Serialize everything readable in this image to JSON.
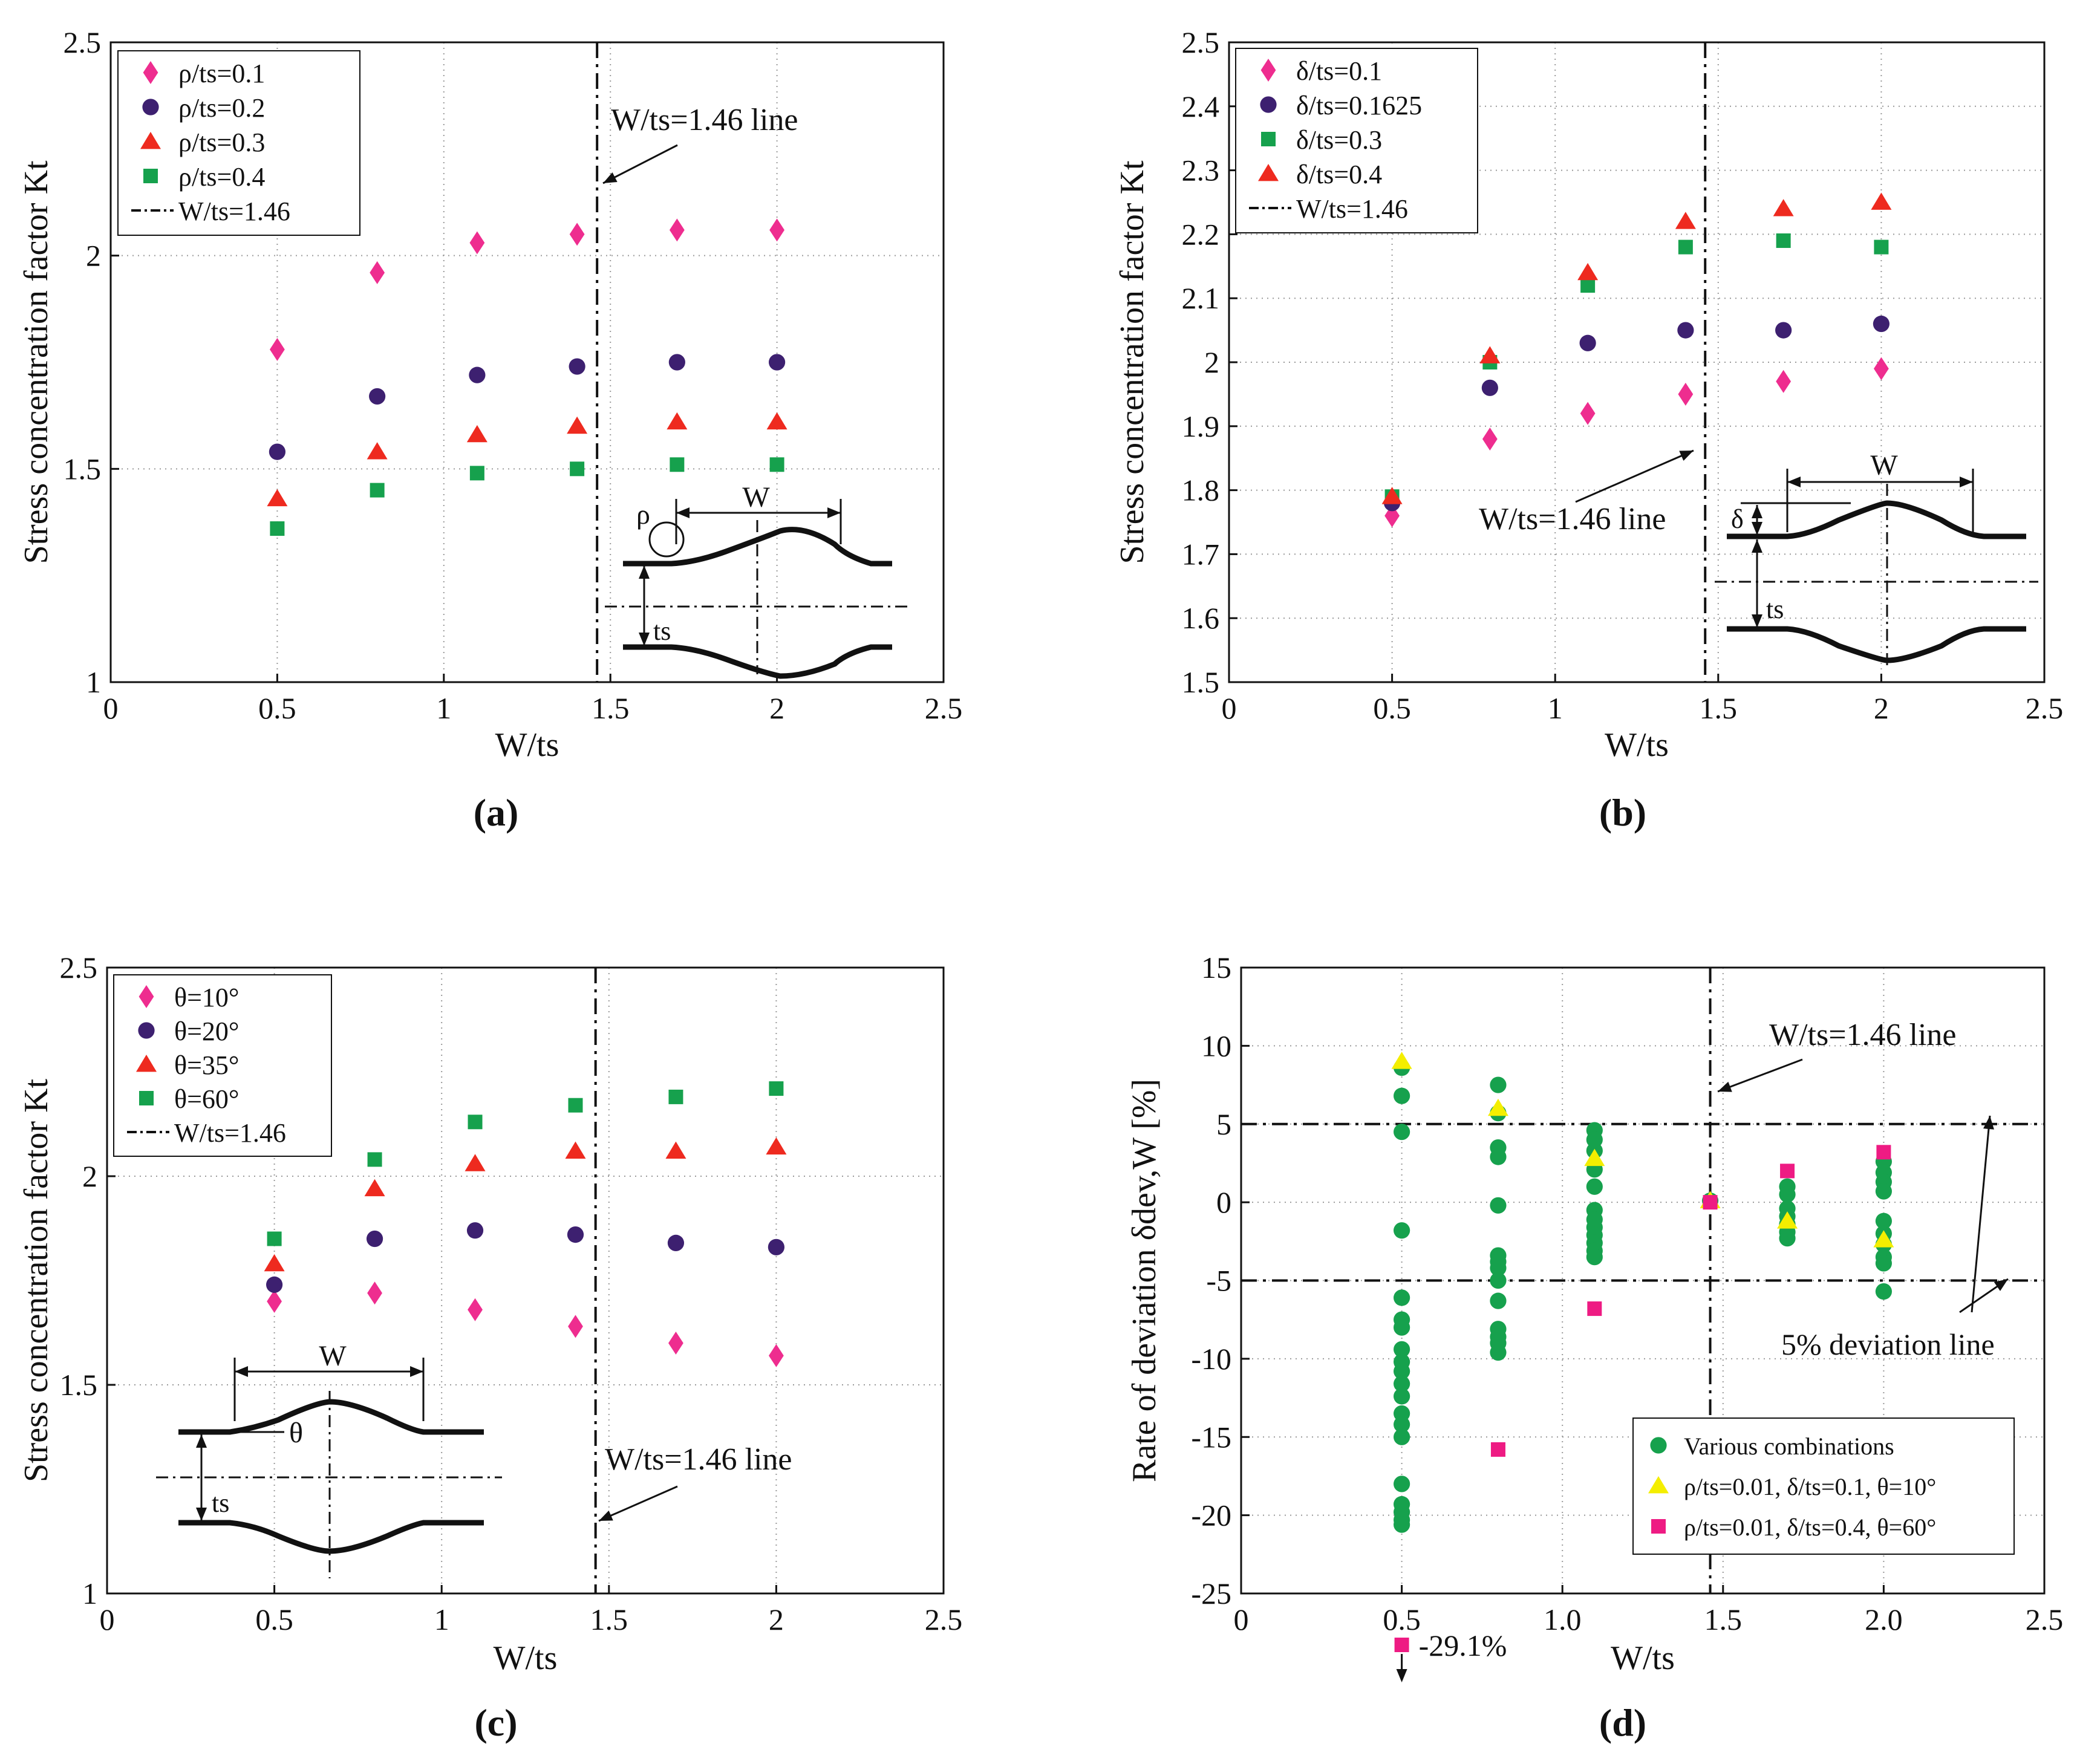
{
  "figure_colors": {
    "pink": "#ee2d8f",
    "purple": "#3d2070",
    "red": "#ee2a1f",
    "green": "#16a14d",
    "yellow": "#f4ee00",
    "magenta": "#ee1b83",
    "axis": "#111111",
    "grid": "#9a9a9a"
  },
  "chart_data": [
    {
      "id": "a",
      "type": "scatter",
      "panel_label": "(a)",
      "title": "",
      "xlabel": "W/ts",
      "ylabel": "Stress concentration factor Kt",
      "xlim": [
        0,
        2.5
      ],
      "ylim": [
        1,
        2.5
      ],
      "xticks": [
        0,
        0.5,
        1,
        1.5,
        2,
        2.5
      ],
      "xtick_labels": [
        "0",
        "0.5",
        "1",
        "1.5",
        "2",
        "2.5"
      ],
      "yticks": [
        1,
        1.5,
        2,
        2.5
      ],
      "ytick_labels": [
        "1",
        "1.5",
        "2",
        "2.5"
      ],
      "grid": true,
      "legend_position": "top-left",
      "series": [
        {
          "name": "ρ/ts=0.1",
          "marker": "diamond",
          "color": "#ee2d8f",
          "x": [
            0.5,
            0.8,
            1.1,
            1.4,
            1.7,
            2.0
          ],
          "y": [
            1.78,
            1.96,
            2.03,
            2.05,
            2.06,
            2.06
          ]
        },
        {
          "name": "ρ/ts=0.2",
          "marker": "circle",
          "color": "#3d2070",
          "x": [
            0.5,
            0.8,
            1.1,
            1.4,
            1.7,
            2.0
          ],
          "y": [
            1.54,
            1.67,
            1.72,
            1.74,
            1.75,
            1.75
          ]
        },
        {
          "name": "ρ/ts=0.3",
          "marker": "triangle",
          "color": "#ee2a1f",
          "x": [
            0.5,
            0.8,
            1.1,
            1.4,
            1.7,
            2.0
          ],
          "y": [
            1.43,
            1.54,
            1.58,
            1.6,
            1.61,
            1.61
          ]
        },
        {
          "name": "ρ/ts=0.4",
          "marker": "square",
          "color": "#16a14d",
          "x": [
            0.5,
            0.8,
            1.1,
            1.4,
            1.7,
            2.0
          ],
          "y": [
            1.36,
            1.45,
            1.49,
            1.5,
            1.51,
            1.51
          ]
        }
      ],
      "reference_lines": [
        {
          "name": "W/ts=1.46",
          "orientation": "vertical",
          "value": 1.46,
          "style": "dash-dot"
        }
      ],
      "annotations": [
        {
          "text": "W/ts=1.46 line",
          "x": 1.46,
          "y": 2.27
        }
      ],
      "schematic": {
        "type": "rho",
        "labels": [
          "ρ",
          "W",
          "ts"
        ]
      }
    },
    {
      "id": "b",
      "type": "scatter",
      "panel_label": "(b)",
      "title": "",
      "xlabel": "W/ts",
      "ylabel": "Stress concentration factor Kt",
      "xlim": [
        0,
        2.5
      ],
      "ylim": [
        1.5,
        2.5
      ],
      "xticks": [
        0,
        0.5,
        1,
        1.5,
        2,
        2.5
      ],
      "xtick_labels": [
        "0",
        "0.5",
        "1",
        "1.5",
        "2",
        "2.5"
      ],
      "yticks": [
        1.5,
        1.6,
        1.7,
        1.8,
        1.9,
        2.0,
        2.1,
        2.2,
        2.3,
        2.4,
        2.5
      ],
      "ytick_labels": [
        "1.5",
        "1.6",
        "1.7",
        "1.8",
        "1.9",
        "2",
        "2.1",
        "2.2",
        "2.3",
        "2.4",
        "2.5"
      ],
      "grid": true,
      "legend_position": "top-left",
      "series": [
        {
          "name": "δ/ts=0.1",
          "marker": "diamond",
          "color": "#ee2d8f",
          "x": [
            0.5,
            0.8,
            1.1,
            1.4,
            1.7,
            2.0
          ],
          "y": [
            1.76,
            1.88,
            1.92,
            1.95,
            1.97,
            1.99
          ]
        },
        {
          "name": "δ/ts=0.1625",
          "marker": "circle",
          "color": "#3d2070",
          "x": [
            0.5,
            0.8,
            1.1,
            1.4,
            1.7,
            2.0
          ],
          "y": [
            1.78,
            1.96,
            2.03,
            2.05,
            2.05,
            2.06
          ]
        },
        {
          "name": "δ/ts=0.3",
          "marker": "square",
          "color": "#16a14d",
          "x": [
            0.5,
            0.8,
            1.1,
            1.4,
            1.7,
            2.0
          ],
          "y": [
            1.79,
            2.0,
            2.12,
            2.18,
            2.19,
            2.18
          ]
        },
        {
          "name": "δ/ts=0.4",
          "marker": "triangle",
          "color": "#ee2a1f",
          "x": [
            0.5,
            0.8,
            1.1,
            1.4,
            1.7,
            2.0
          ],
          "y": [
            1.79,
            2.01,
            2.14,
            2.22,
            2.24,
            2.25
          ]
        }
      ],
      "reference_lines": [
        {
          "name": "W/ts=1.46",
          "orientation": "vertical",
          "value": 1.46,
          "style": "dash-dot"
        }
      ],
      "annotations": [
        {
          "text": "W/ts=1.46 line",
          "x": 1.46,
          "y": 1.87
        }
      ],
      "schematic": {
        "type": "delta",
        "labels": [
          "δ",
          "W",
          "ts"
        ]
      }
    },
    {
      "id": "c",
      "type": "scatter",
      "panel_label": "(c)",
      "title": "",
      "xlabel": "W/ts",
      "ylabel": "Stress concentration factor Kt",
      "xlim": [
        0,
        2.5
      ],
      "ylim": [
        1,
        2.5
      ],
      "xticks": [
        0,
        0.5,
        1,
        1.5,
        2,
        2.5
      ],
      "xtick_labels": [
        "0",
        "0.5",
        "1",
        "1.5",
        "2",
        "2.5"
      ],
      "yticks": [
        1,
        1.5,
        2,
        2.5
      ],
      "ytick_labels": [
        "1",
        "1.5",
        "2",
        "2.5"
      ],
      "grid": true,
      "legend_position": "top-left",
      "series": [
        {
          "name": "θ=10°",
          "marker": "diamond",
          "color": "#ee2d8f",
          "x": [
            0.5,
            0.8,
            1.1,
            1.4,
            1.7,
            2.0
          ],
          "y": [
            1.7,
            1.72,
            1.68,
            1.64,
            1.6,
            1.57
          ]
        },
        {
          "name": "θ=20°",
          "marker": "circle",
          "color": "#3d2070",
          "x": [
            0.5,
            0.8,
            1.1,
            1.4,
            1.7,
            2.0
          ],
          "y": [
            1.74,
            1.85,
            1.87,
            1.86,
            1.84,
            1.83
          ]
        },
        {
          "name": "θ=35°",
          "marker": "triangle",
          "color": "#ee2a1f",
          "x": [
            0.5,
            0.8,
            1.1,
            1.4,
            1.7,
            2.0
          ],
          "y": [
            1.79,
            1.97,
            2.03,
            2.06,
            2.06,
            2.07
          ]
        },
        {
          "name": "θ=60°",
          "marker": "square",
          "color": "#16a14d",
          "x": [
            0.5,
            0.8,
            1.1,
            1.4,
            1.7,
            2.0
          ],
          "y": [
            1.85,
            2.04,
            2.13,
            2.17,
            2.19,
            2.21
          ]
        }
      ],
      "reference_lines": [
        {
          "name": "W/ts=1.46",
          "orientation": "vertical",
          "value": 1.46,
          "style": "dash-dot"
        }
      ],
      "annotations": [
        {
          "text": "W/ts=1.46 line",
          "x": 1.46,
          "y": 1.3
        }
      ],
      "schematic": {
        "type": "theta",
        "labels": [
          "θ",
          "W",
          "ts"
        ]
      }
    },
    {
      "id": "d",
      "type": "scatter",
      "panel_label": "(d)",
      "title": "",
      "xlabel": "W/ts",
      "ylabel": "Rate of deviation δdev,W [%]",
      "xlim": [
        0,
        2.5
      ],
      "ylim": [
        -25,
        15
      ],
      "xticks": [
        0,
        0.5,
        1.0,
        1.5,
        2.0,
        2.5
      ],
      "xtick_labels": [
        "0",
        "0.5",
        "1.0",
        "1.5",
        "2.0",
        "2.5"
      ],
      "yticks": [
        -25,
        -20,
        -15,
        -10,
        -5,
        0,
        5,
        10,
        15
      ],
      "ytick_labels": [
        "-25",
        "-20",
        "-15",
        "-10",
        "-5",
        "0",
        "5",
        "10",
        "15"
      ],
      "grid": true,
      "legend_position": "bottom-right",
      "series": [
        {
          "name": "Various combinations",
          "marker": "circle",
          "color": "#16a14d",
          "x": [
            0.5,
            0.5,
            0.5,
            0.5,
            0.5,
            0.5,
            0.5,
            0.5,
            0.5,
            0.5,
            0.5,
            0.5,
            0.5,
            0.5,
            0.5,
            0.5,
            0.5,
            0.5,
            0.5,
            0.5,
            0.8,
            0.8,
            0.8,
            0.8,
            0.8,
            0.8,
            0.8,
            0.8,
            0.8,
            0.8,
            0.8,
            0.8,
            0.8,
            0.8,
            1.1,
            1.1,
            1.1,
            1.1,
            1.1,
            1.1,
            1.1,
            1.1,
            1.1,
            1.1,
            1.1,
            1.1,
            1.46,
            1.7,
            1.7,
            1.7,
            1.7,
            1.7,
            1.7,
            1.7,
            2.0,
            2.0,
            2.0,
            2.0,
            2.0,
            2.0,
            2.0,
            2.0,
            2.0,
            2.0
          ],
          "y": [
            8.6,
            6.8,
            4.5,
            -1.8,
            -6.1,
            -8.0,
            -9.4,
            -10.2,
            -10.8,
            -11.6,
            -12.4,
            -13.5,
            -14.2,
            -15.0,
            -18.0,
            -19.3,
            -19.8,
            -20.3,
            -20.6,
            -7.5,
            7.5,
            5.7,
            3.5,
            2.9,
            -0.2,
            -3.4,
            -3.8,
            -4.2,
            -5.0,
            -6.3,
            -8.1,
            -8.6,
            -9.0,
            -9.6,
            4.6,
            3.3,
            2.1,
            1.0,
            -0.5,
            -1.1,
            -1.6,
            -2.1,
            -2.6,
            -3.1,
            -3.5,
            4.0,
            0.1,
            1.0,
            0.5,
            -0.4,
            -0.9,
            -1.4,
            -1.9,
            -2.3,
            2.6,
            1.9,
            1.3,
            0.7,
            -1.2,
            -2.0,
            -2.7,
            -3.5,
            -3.9,
            -5.7
          ]
        },
        {
          "name": "ρ/ts=0.01, δ/ts=0.1, θ=10°",
          "marker": "triangle",
          "color": "#f4ee00",
          "x": [
            0.5,
            0.8,
            1.1,
            1.46,
            1.7,
            2.0
          ],
          "y": [
            9.0,
            6.0,
            2.8,
            0.1,
            -1.2,
            -2.4
          ]
        },
        {
          "name": "ρ/ts=0.01, δ/ts=0.4, θ=60°",
          "marker": "square",
          "color": "#ee1b83",
          "x": [
            0.8,
            1.1,
            1.46,
            1.7,
            2.0
          ],
          "y": [
            -15.8,
            -6.8,
            0.0,
            2.0,
            3.2
          ]
        }
      ],
      "reference_lines": [
        {
          "name": "W/ts=1.46",
          "orientation": "vertical",
          "value": 1.46,
          "style": "dash-dot"
        },
        {
          "name": "+5% deviation",
          "orientation": "horizontal",
          "value": 5,
          "style": "dash-dot"
        },
        {
          "name": "-5% deviation",
          "orientation": "horizontal",
          "value": -5,
          "style": "dash-dot"
        }
      ],
      "annotations": [
        {
          "text": "W/ts=1.46 line",
          "x": 1.46,
          "y": 10
        },
        {
          "text": "5% deviation line",
          "x": 2.2,
          "y": -9
        },
        {
          "text": "-29.1%",
          "x": 0.5,
          "y": -29.1
        }
      ],
      "schematic": null
    }
  ]
}
